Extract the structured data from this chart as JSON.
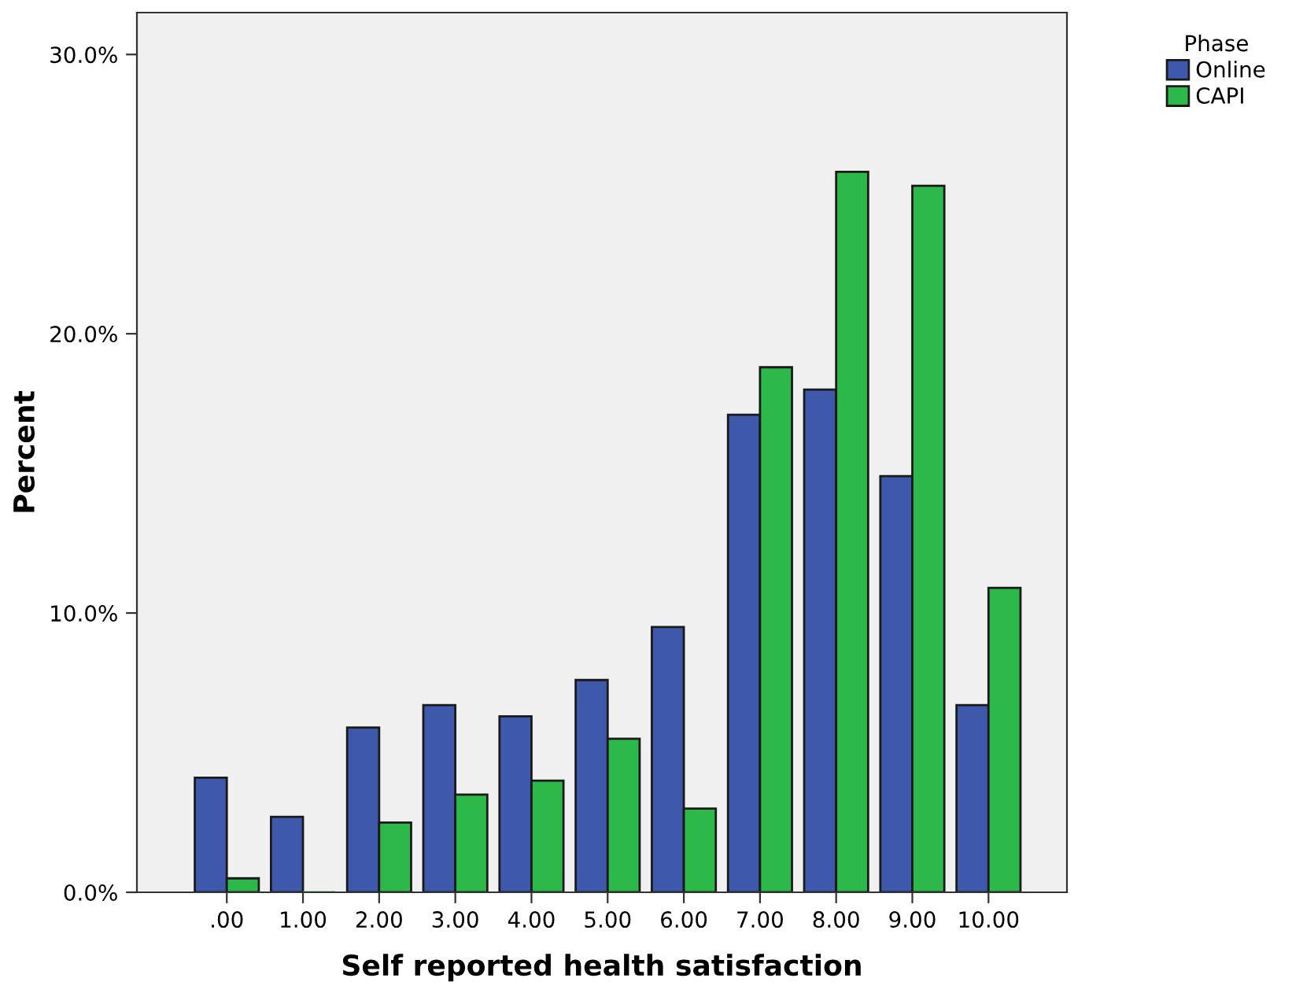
{
  "chart_data": {
    "type": "bar",
    "xlabel": "Self reported health satisfaction",
    "ylabel": "Percent",
    "legend_title": "Phase",
    "categories": [
      ".00",
      "1.00",
      "2.00",
      "3.00",
      "4.00",
      "5.00",
      "6.00",
      "7.00",
      "8.00",
      "9.00",
      "10.00"
    ],
    "series": [
      {
        "name": "Online",
        "color": "#3e58ac",
        "values": [
          4.1,
          2.7,
          5.9,
          6.7,
          6.3,
          7.6,
          9.5,
          17.1,
          18.0,
          14.9,
          6.7
        ]
      },
      {
        "name": "CAPI",
        "color": "#2db84a",
        "values": [
          0.5,
          0.0,
          2.5,
          3.5,
          4.0,
          5.5,
          3.0,
          18.8,
          25.8,
          25.3,
          10.9
        ]
      }
    ],
    "ylim": [
      0,
      31.5
    ],
    "yticks": [
      {
        "value": 0,
        "label": "0.0%"
      },
      {
        "value": 10,
        "label": "10.0%"
      },
      {
        "value": 20,
        "label": "20.0%"
      },
      {
        "value": 30,
        "label": "30.0%"
      }
    ],
    "grid": false,
    "legend": "top right"
  }
}
